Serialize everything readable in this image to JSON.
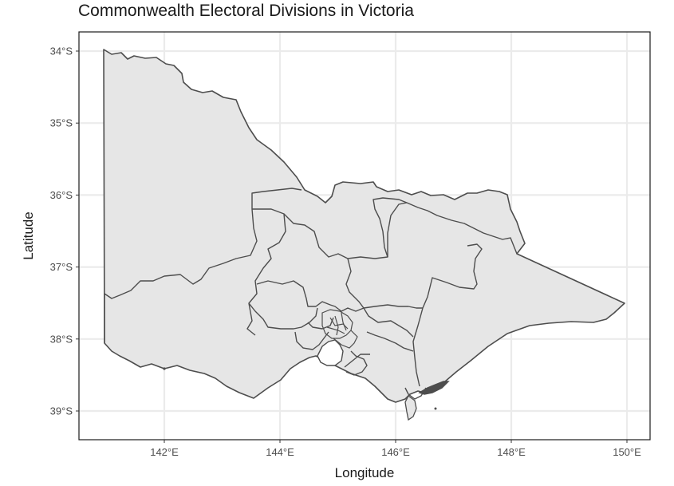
{
  "title": "Commonwealth Electoral Divisions in Victoria",
  "chart_data": {
    "type": "map",
    "xlabel": "Longitude",
    "ylabel": "Latitude",
    "x_ticks": [
      {
        "value": 142,
        "label": "142°E"
      },
      {
        "value": 144,
        "label": "144°E"
      },
      {
        "value": 146,
        "label": "146°E"
      },
      {
        "value": 148,
        "label": "148°E"
      },
      {
        "value": 150,
        "label": "150°E"
      }
    ],
    "y_ticks": [
      {
        "value": -34,
        "label": "34°S"
      },
      {
        "value": -35,
        "label": "35°S"
      },
      {
        "value": -36,
        "label": "36°S"
      },
      {
        "value": -37,
        "label": "37°S"
      },
      {
        "value": -38,
        "label": "38°S"
      },
      {
        "value": -39,
        "label": "39°S"
      }
    ],
    "xlim": [
      140.6,
      150.4
    ],
    "ylim": [
      -39.4,
      -33.75
    ],
    "grid": true,
    "fill_color": "#e6e6e6",
    "stroke_color": "#4d4d4d",
    "grid_color": "#ebebeb"
  }
}
